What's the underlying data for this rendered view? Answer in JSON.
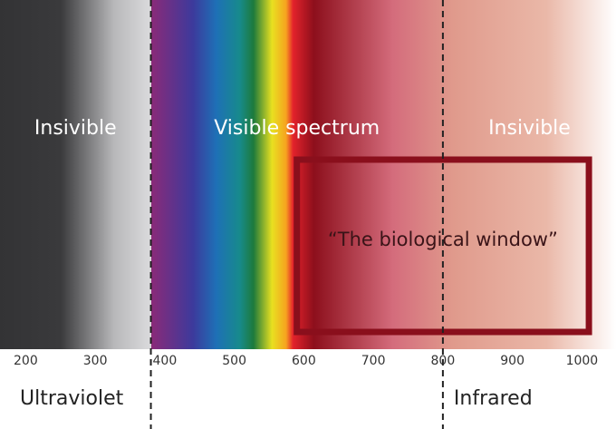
{
  "axis": {
    "range": [
      163,
      1049
    ],
    "ticks": [
      200,
      300,
      400,
      500,
      600,
      700,
      800,
      900,
      1000
    ],
    "boundaries": [
      380,
      800
    ]
  },
  "regions": [
    {
      "label": "Insivible"
    },
    {
      "label": "Visible spectrum"
    },
    {
      "label": "Insivible"
    }
  ],
  "window": {
    "label": "“The biological window”",
    "range": [
      590,
      1010
    ]
  },
  "bands": [
    {
      "label": "Ultraviolet"
    },
    {
      "label": "Infrared"
    }
  ]
}
